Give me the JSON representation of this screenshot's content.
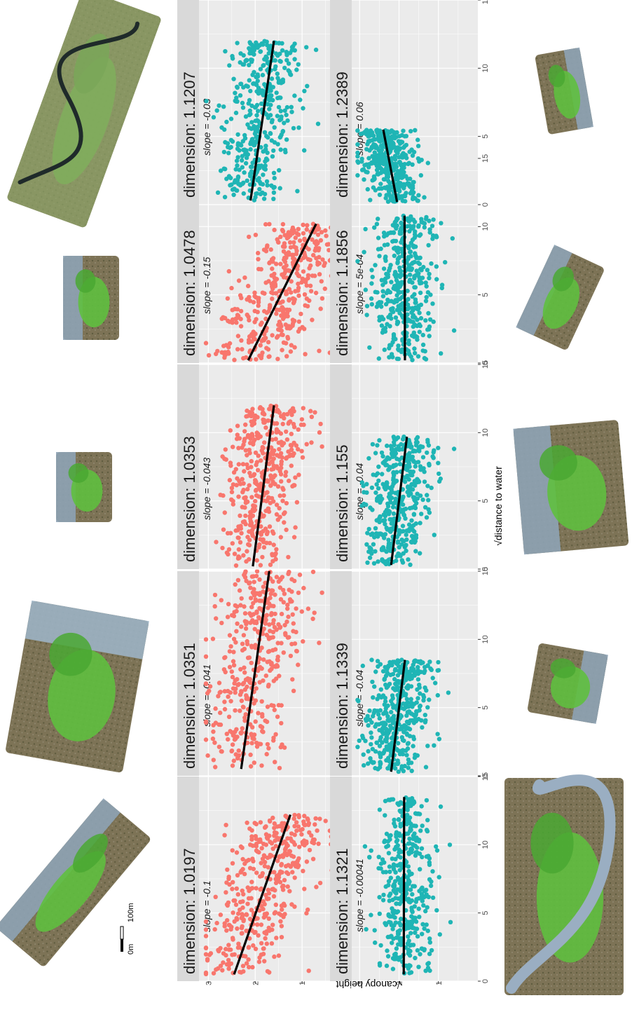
{
  "chart_data": {
    "type": "scatter",
    "layout": "faceted small multiples, page rotated 90 degrees",
    "xlabel": "√distance to water",
    "ylabel": "√canopy height",
    "xlim": [
      0,
      15
    ],
    "ylim": [
      0,
      3.2
    ],
    "x_ticks": [
      0,
      5,
      10,
      15
    ],
    "y_ticks": [
      1,
      2,
      3
    ],
    "grid": true,
    "colors": {
      "red": "#F8766D",
      "teal": "#1FB5B5",
      "fit": "#000000",
      "strip": "#d9d9d9",
      "panel": "#ebebeb"
    },
    "facets": [
      {
        "dimension": "dimension: 1.0197",
        "slope": "slope = -0.1",
        "color": "red",
        "x_range": [
          0.5,
          12.2
        ],
        "fit": [
          [
            0.5,
            2.45
          ],
          [
            12.2,
            1.25
          ]
        ],
        "center": 2.0,
        "spread": 0.45
      },
      {
        "dimension": "dimension: 1.0351",
        "slope": "slope = -0.041",
        "color": "red",
        "x_range": [
          0.5,
          15
        ],
        "fit": [
          [
            0.5,
            2.3
          ],
          [
            15,
            1.7
          ]
        ],
        "center": 2.0,
        "spread": 0.45
      },
      {
        "dimension": "dimension: 1.0353",
        "slope": "slope = -0.043",
        "color": "red",
        "x_range": [
          0.2,
          12
        ],
        "fit": [
          [
            0.2,
            2.05
          ],
          [
            12,
            1.6
          ]
        ],
        "center": 1.9,
        "spread": 0.4
      },
      {
        "dimension": "dimension: 1.0478",
        "slope": "slope = -0.15",
        "color": "red",
        "x_range": [
          0.2,
          10.2
        ],
        "fit": [
          [
            0.2,
            2.15
          ],
          [
            10.2,
            0.7
          ]
        ],
        "center": 1.5,
        "spread": 0.5
      },
      {
        "dimension": "dimension: 1.1207",
        "slope": "slope = -0.03",
        "color": "teal",
        "x_range": [
          0.3,
          12
        ],
        "fit": [
          [
            0.3,
            2.1
          ],
          [
            12,
            1.6
          ]
        ],
        "center": 1.9,
        "spread": 0.4
      },
      {
        "dimension": "dimension: 1.1321",
        "slope": "slope = -0.00041",
        "color": "teal",
        "x_range": [
          0.5,
          13.5
        ],
        "fit": [
          [
            0.5,
            1.88
          ],
          [
            13.5,
            1.87
          ]
        ],
        "center": 1.85,
        "spread": 0.35
      },
      {
        "dimension": "dimension: 1.1339",
        "slope": "slope = -0.04",
        "color": "teal",
        "x_range": [
          0.3,
          8.5
        ],
        "fit": [
          [
            0.3,
            2.2
          ],
          [
            8.5,
            1.85
          ]
        ],
        "center": 1.9,
        "spread": 0.4
      },
      {
        "dimension": "dimension: 1.155",
        "slope": "slope = -0.04",
        "color": "teal",
        "x_range": [
          0.3,
          9.7
        ],
        "fit": [
          [
            0.3,
            2.2
          ],
          [
            9.7,
            1.8
          ]
        ],
        "center": 1.9,
        "spread": 0.4
      },
      {
        "dimension": "dimension: 1.1856",
        "slope": "slope = 5e-04",
        "color": "teal",
        "x_range": [
          0.2,
          10.8
        ],
        "fit": [
          [
            0.2,
            1.85
          ],
          [
            10.8,
            1.86
          ]
        ],
        "center": 1.85,
        "spread": 0.4
      },
      {
        "dimension": "dimension: 1.2389",
        "slope": "slope = 0.06",
        "color": "teal",
        "x_range": [
          0.2,
          5.5
        ],
        "fit": [
          [
            0.2,
            2.05
          ],
          [
            5.5,
            2.4
          ]
        ],
        "center": 2.1,
        "spread": 0.35
      }
    ]
  },
  "scale_bar": {
    "zero_label": "0m",
    "length_label": "100m"
  }
}
